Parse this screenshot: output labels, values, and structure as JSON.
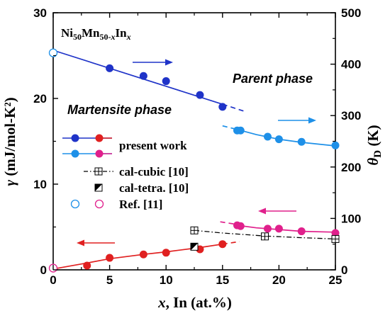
{
  "chart_data": {
    "type": "scatter",
    "title": "Ni50Mn50-xInx",
    "compound": {
      "p1": "Ni",
      "s1": "50",
      "p2": "Mn",
      "s2a": "50-",
      "s2b": "x",
      "p3": "In",
      "s3": "x"
    },
    "xlabel": {
      "var": "x",
      "rest": ", In (at.%)"
    },
    "ylabel_left": {
      "var": "γ",
      "rest": " (mJ/mol-K²)"
    },
    "ylabel_right": {
      "var": "θ",
      "sub": "D",
      "rest": " (K)"
    },
    "xlim": [
      0,
      25
    ],
    "ylim_left": [
      0,
      30
    ],
    "ylim_right": [
      0,
      500
    ],
    "x_ticks": [
      0,
      5,
      10,
      15,
      20,
      25
    ],
    "y_left_ticks": [
      0,
      10,
      20,
      30
    ],
    "y_right_ticks": [
      0,
      100,
      200,
      300,
      400,
      500
    ],
    "colors": {
      "dark_blue": "#1f33c8",
      "light_blue": "#1e90e8",
      "red": "#e02020",
      "magenta": "#e0208c",
      "black": "#000000"
    },
    "series": [
      {
        "name": "present work",
        "axis": "right",
        "color": "#1f33c8",
        "marker": "filled-circle",
        "x": [
          5,
          8,
          10,
          13,
          15
        ],
        "y": [
          392,
          377,
          367,
          340,
          317
        ]
      },
      {
        "name": "present work",
        "axis": "right",
        "color": "#1e90e8",
        "marker": "filled-circle",
        "x": [
          16.3,
          16.6,
          19,
          20,
          22,
          25
        ],
        "y": [
          271,
          271,
          259,
          254,
          249,
          242
        ]
      },
      {
        "name": "present work",
        "axis": "left",
        "color": "#e02020",
        "marker": "filled-circle",
        "x": [
          3,
          5,
          8,
          10,
          13,
          15
        ],
        "y": [
          0.5,
          1.4,
          1.8,
          2.0,
          2.4,
          3.0
        ]
      },
      {
        "name": "present work",
        "axis": "left",
        "color": "#e0208c",
        "marker": "filled-circle",
        "x": [
          16.3,
          16.6,
          19,
          20,
          22,
          25
        ],
        "y": [
          5.2,
          5.1,
          4.8,
          4.8,
          4.5,
          4.3
        ]
      },
      {
        "name": "cal-cubic [10]",
        "axis": "left",
        "color": "#000000",
        "marker": "crossed-square",
        "x": [
          12.5,
          18.75,
          25
        ],
        "y": [
          4.6,
          3.9,
          3.6
        ]
      },
      {
        "name": "cal-tetra. [10]",
        "axis": "left",
        "color": "#000000",
        "marker": "half-filled-square",
        "x": [
          12.5
        ],
        "y": [
          2.7
        ]
      },
      {
        "name": "Ref. [11]",
        "axis": "right",
        "color": "#1e90e8",
        "marker": "open-circle",
        "x": [
          0
        ],
        "y": [
          422
        ]
      },
      {
        "name": "Ref. [11]",
        "axis": "left",
        "color": "#e0208c",
        "marker": "open-circle",
        "x": [
          0
        ],
        "y": [
          0.2
        ]
      }
    ],
    "fit_lines": [
      {
        "axis": "right",
        "color": "#1f33c8",
        "style": "solid",
        "x": [
          0,
          15
        ],
        "y": [
          427,
          322
        ]
      },
      {
        "axis": "right",
        "color": "#1f33c8",
        "style": "dashed",
        "x": [
          15,
          17
        ],
        "y": [
          322,
          308
        ]
      },
      {
        "axis": "right",
        "color": "#1e90e8",
        "style": "dashed",
        "x": [
          15,
          16.3
        ],
        "y": [
          280,
          273
        ]
      },
      {
        "axis": "right",
        "color": "#1e90e8",
        "style": "solid",
        "x": [
          16.3,
          18,
          20,
          22,
          25
        ],
        "y": [
          273,
          263,
          254,
          248,
          241
        ]
      },
      {
        "axis": "left",
        "color": "#e02020",
        "style": "solid",
        "x": [
          0,
          3,
          5,
          8,
          10,
          13,
          15
        ],
        "y": [
          0.1,
          0.8,
          1.3,
          1.8,
          2.1,
          2.6,
          3.0
        ]
      },
      {
        "axis": "left",
        "color": "#e02020",
        "style": "dashed",
        "x": [
          15,
          16.5
        ],
        "y": [
          3.0,
          3.3
        ]
      },
      {
        "axis": "left",
        "color": "#e0208c",
        "style": "dashed",
        "x": [
          14.8,
          16.3
        ],
        "y": [
          5.6,
          5.3
        ]
      },
      {
        "axis": "left",
        "color": "#e0208c",
        "style": "solid",
        "x": [
          16.3,
          18,
          20,
          22,
          25
        ],
        "y": [
          5.2,
          4.9,
          4.7,
          4.5,
          4.4
        ]
      },
      {
        "axis": "left",
        "color": "#000000",
        "style": "dashdot",
        "x": [
          12.5,
          15,
          18.75,
          22,
          25
        ],
        "y": [
          4.6,
          4.3,
          3.95,
          3.75,
          3.6
        ]
      }
    ],
    "annotations": [
      {
        "text": "Parent phase"
      },
      {
        "text": "Martensite phase"
      }
    ],
    "legend": {
      "placement": "center-left",
      "entries": [
        {
          "label": "present work",
          "label_color": "#000000"
        },
        {
          "label": "cal-cubic [10]",
          "label_color": "#000000"
        },
        {
          "label": "cal-tetra. [10]",
          "label_color": "#000000"
        },
        {
          "label": "Ref. [11]",
          "label_color": "#e0208c"
        }
      ]
    },
    "grid": false
  }
}
